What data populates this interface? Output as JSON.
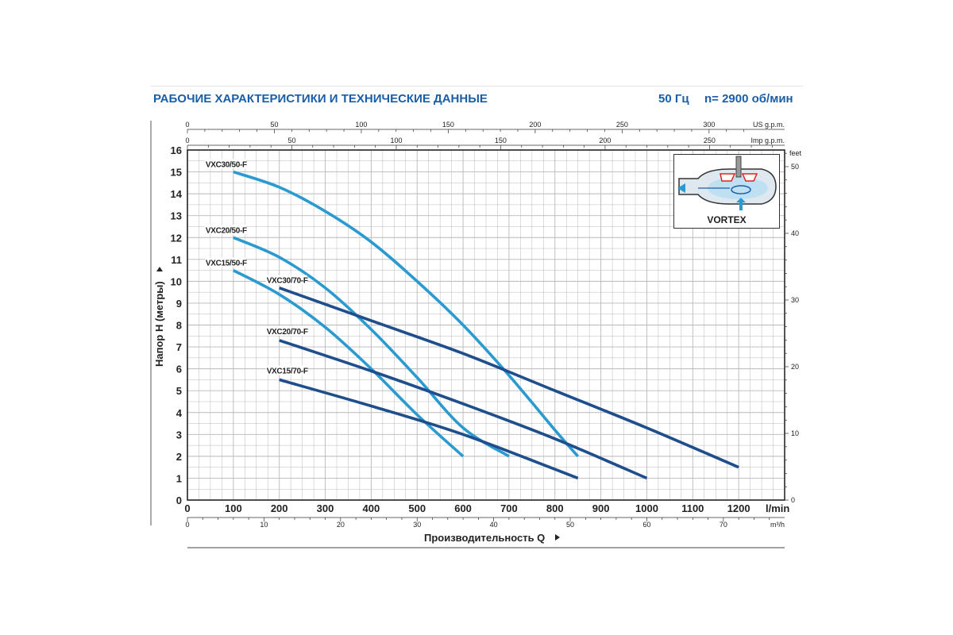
{
  "header": {
    "title": "РАБОЧИЕ ХАРАКТЕРИСТИКИ И ТЕХНИЧЕСКИЕ ДАННЫЕ",
    "frequency": "50 Гц",
    "speed": "n= 2900 об/мин"
  },
  "inset": {
    "label": "VORTEX",
    "icon": "vortex-impeller-diagram"
  },
  "colors": {
    "grid": "#b9b9b9",
    "curve_50": "#2a9ad0",
    "curve_70": "#1f4e8c",
    "axis": "#222222",
    "title": "#1a5ea8"
  },
  "chart_data": {
    "type": "line",
    "xlabel": "Производительность Q",
    "ylabel": "Напор H (метры)",
    "x_unit": "l/min",
    "xlim": [
      0,
      1300
    ],
    "ylim": [
      0,
      16
    ],
    "grid": true,
    "x_ticks": [
      0,
      100,
      200,
      300,
      400,
      500,
      600,
      700,
      800,
      900,
      1000,
      1100,
      1200
    ],
    "y_ticks": [
      0,
      1,
      2,
      3,
      4,
      5,
      6,
      7,
      8,
      9,
      10,
      11,
      12,
      13,
      14,
      15,
      16
    ],
    "secondary_axes": {
      "us_gpm": {
        "unit": "US g.p.m.",
        "ticks": [
          0,
          50,
          100,
          150,
          200,
          250,
          300
        ],
        "minor_step": 10
      },
      "imp_gpm": {
        "unit": "Imp g.p.m.",
        "ticks": [
          0,
          50,
          100,
          150,
          200,
          250
        ],
        "minor_step": 10
      },
      "m3h": {
        "unit": "m³/h",
        "ticks": [
          0,
          10,
          20,
          30,
          40,
          50,
          60,
          70
        ],
        "minor_step": 2
      },
      "feet": {
        "unit": "feet",
        "ticks": [
          0,
          10,
          20,
          30,
          40,
          50
        ],
        "minor_step": 2
      }
    },
    "series": [
      {
        "name": "VXC30/50-F",
        "group": "50",
        "x": [
          100,
          200,
          300,
          400,
          500,
          600,
          700,
          800,
          850
        ],
        "y": [
          15.0,
          14.3,
          13.2,
          11.8,
          10.0,
          8.0,
          5.7,
          3.2,
          2.0
        ]
      },
      {
        "name": "VXC20/50-F",
        "group": "50",
        "x": [
          100,
          200,
          300,
          400,
          500,
          600,
          700
        ],
        "y": [
          12.0,
          11.1,
          9.7,
          7.8,
          5.6,
          3.3,
          2.0
        ]
      },
      {
        "name": "VXC15/50-F",
        "group": "50",
        "x": [
          100,
          200,
          300,
          400,
          500,
          600
        ],
        "y": [
          10.5,
          9.4,
          7.9,
          6.0,
          3.9,
          2.0
        ]
      },
      {
        "name": "VXC30/70-F",
        "group": "70",
        "x": [
          200,
          400,
          600,
          800,
          1000,
          1200
        ],
        "y": [
          9.7,
          8.2,
          6.7,
          5.0,
          3.3,
          1.5
        ]
      },
      {
        "name": "VXC20/70-F",
        "group": "70",
        "x": [
          200,
          400,
          600,
          800,
          1000
        ],
        "y": [
          7.3,
          5.9,
          4.4,
          2.8,
          1.0
        ]
      },
      {
        "name": "VXC15/70-F",
        "group": "70",
        "x": [
          200,
          400,
          600,
          850
        ],
        "y": [
          5.5,
          4.3,
          3.0,
          1.0
        ]
      }
    ]
  }
}
